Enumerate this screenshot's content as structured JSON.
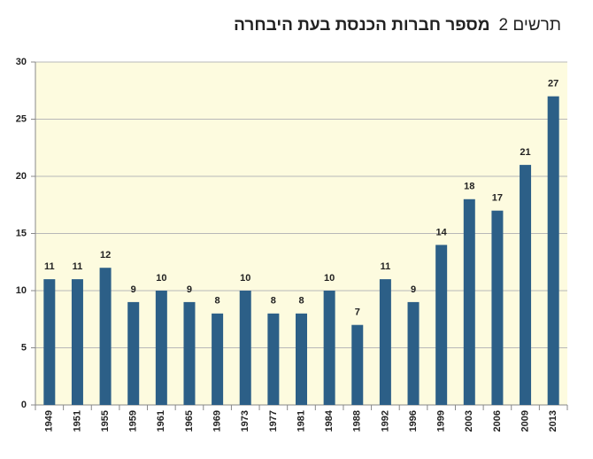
{
  "chart_data": {
    "type": "bar",
    "title_label": "תרשים 2",
    "title": "מספר חברות הכנסת בעת היבחרה",
    "categories": [
      "1949",
      "1951",
      "1955",
      "1959",
      "1961",
      "1965",
      "1969",
      "1973",
      "1977",
      "1981",
      "1984",
      "1988",
      "1992",
      "1996",
      "1999",
      "2003",
      "2006",
      "2009",
      "2013"
    ],
    "values": [
      11,
      11,
      12,
      9,
      10,
      9,
      8,
      10,
      8,
      8,
      10,
      7,
      11,
      9,
      14,
      18,
      17,
      21,
      27
    ],
    "color": "#2c5f87",
    "background": "#fdfbdf",
    "ylim": [
      0,
      30
    ],
    "yticks": [
      0,
      5,
      10,
      15,
      20,
      25,
      30
    ],
    "grid": true
  }
}
